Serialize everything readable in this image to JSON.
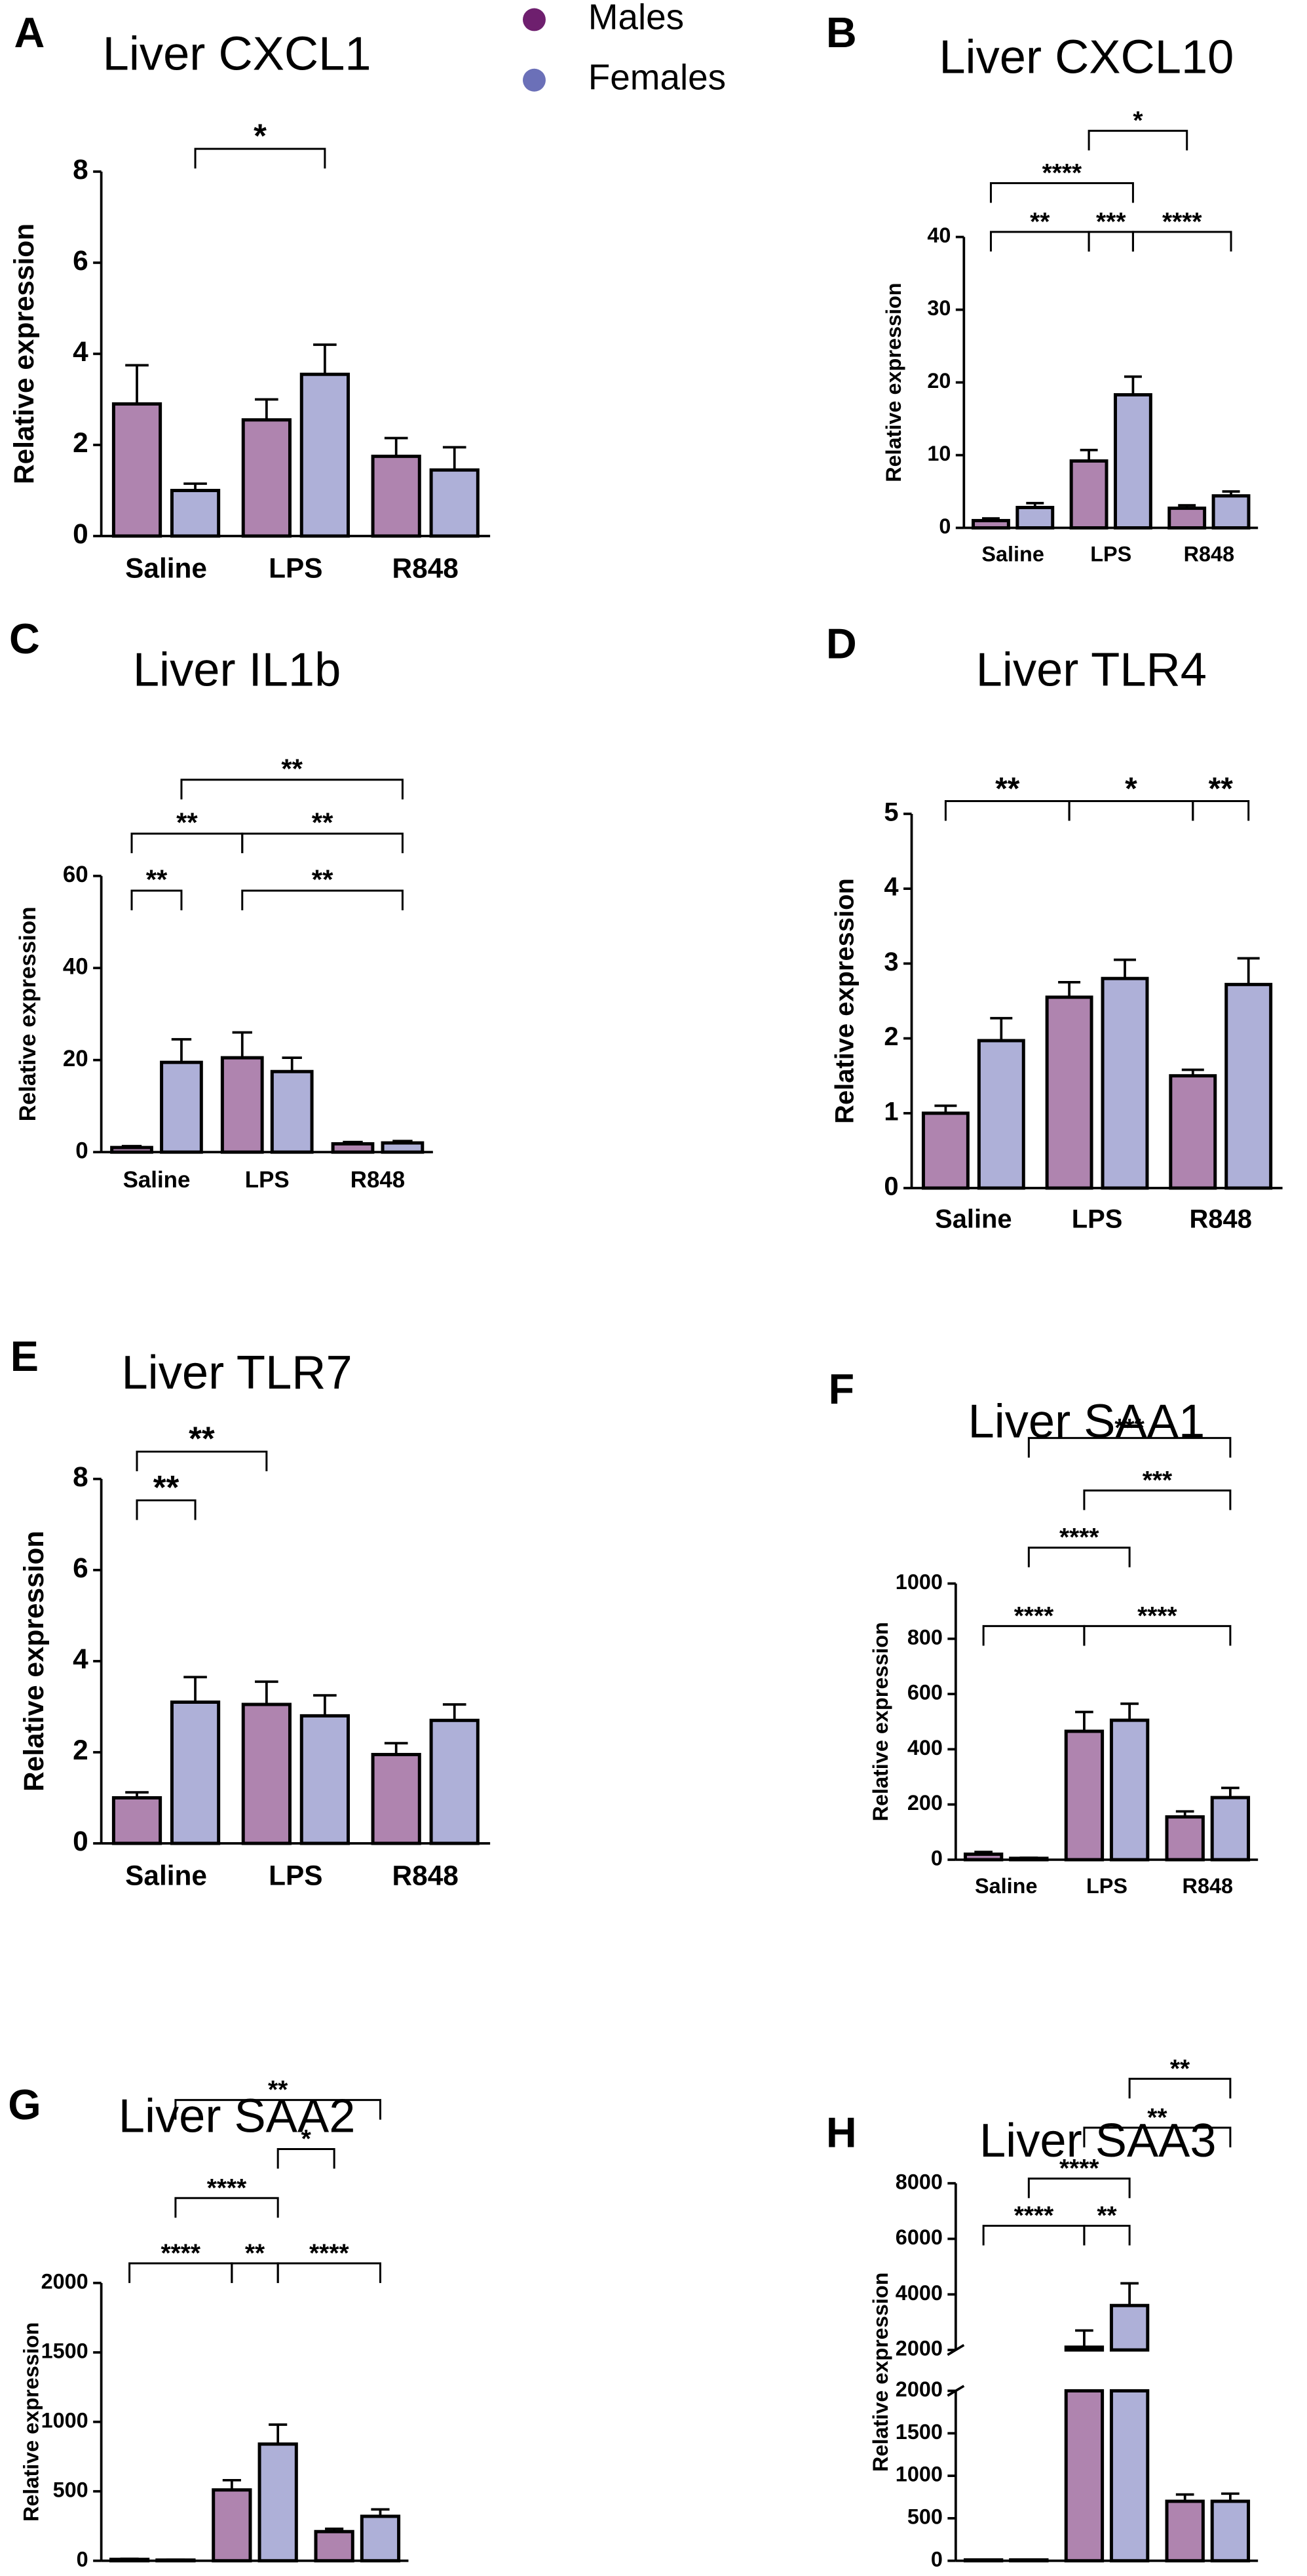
{
  "chart_data": [
    {
      "type": "bar",
      "panel": "A",
      "title": "Liver CXCL1",
      "y_label": "Relative expression",
      "categories": [
        "Saline",
        "LPS",
        "R848"
      ],
      "series": [
        {
          "name": "Males",
          "color": "#6e1f6e",
          "values": [
            2.9,
            2.55,
            1.75
          ],
          "errors": [
            0.85,
            0.45,
            0.4
          ]
        },
        {
          "name": "Females",
          "color": "#6b70b8",
          "values": [
            1.0,
            3.55,
            1.45
          ],
          "errors": [
            0.15,
            0.65,
            0.5
          ]
        }
      ],
      "ylim": [
        0,
        8
      ],
      "yticks": [
        0,
        2,
        4,
        6,
        8
      ],
      "annotations": [
        {
          "label": "*",
          "from": [
            "Saline",
            "Females"
          ],
          "to": [
            "LPS",
            "Females"
          ],
          "y": 8.5
        }
      ]
    },
    {
      "type": "bar",
      "panel": "B",
      "title": "Liver CXCL10",
      "y_label": "Relative expression",
      "categories": [
        "Saline",
        "LPS",
        "R848"
      ],
      "series": [
        {
          "name": "Males",
          "color": "#6e1f6e",
          "values": [
            1.0,
            9.2,
            2.7
          ],
          "errors": [
            0.3,
            1.5,
            0.4
          ]
        },
        {
          "name": "Females",
          "color": "#6b70b8",
          "values": [
            2.8,
            18.3,
            4.4
          ],
          "errors": [
            0.6,
            2.5,
            0.6
          ]
        }
      ],
      "ylim": [
        0,
        40
      ],
      "yticks": [
        0,
        10,
        20,
        30,
        40
      ],
      "annotations": [
        {
          "label": "**",
          "from": [
            "Saline",
            "Males"
          ],
          "to": [
            "LPS",
            "Males"
          ],
          "y": 40.7
        },
        {
          "label": "***",
          "from": [
            "LPS",
            "Males"
          ],
          "to": [
            "LPS",
            "Females"
          ],
          "y": 40.7
        },
        {
          "label": "****",
          "from": [
            "LPS",
            "Females"
          ],
          "to": [
            "R848",
            "Females"
          ],
          "y": 40.7
        },
        {
          "label": "****",
          "from": [
            "Saline",
            "Males"
          ],
          "to": [
            "LPS",
            "Females"
          ],
          "y": 47.4
        },
        {
          "label": "*",
          "from": [
            "LPS",
            "Males"
          ],
          "to": [
            "R848",
            "Males"
          ],
          "y": 54.6
        }
      ]
    },
    {
      "type": "bar",
      "panel": "C",
      "title": "Liver IL1b",
      "y_label": "Relative expression",
      "categories": [
        "Saline",
        "LPS",
        "R848"
      ],
      "series": [
        {
          "name": "Males",
          "color": "#6e1f6e",
          "values": [
            1.0,
            20.5,
            1.8
          ],
          "errors": [
            0.3,
            5.5,
            0.4
          ]
        },
        {
          "name": "Females",
          "color": "#6b70b8",
          "values": [
            19.5,
            17.5,
            2.0
          ],
          "errors": [
            5,
            3,
            0.4
          ]
        }
      ],
      "ylim": [
        0,
        60
      ],
      "yticks": [
        0,
        20,
        40,
        60
      ],
      "annotations": [
        {
          "label": "**",
          "from": [
            "Saline",
            "Males"
          ],
          "to": [
            "Saline",
            "Females"
          ],
          "y": 56.8
        },
        {
          "label": "**",
          "from": [
            "LPS",
            "Males"
          ],
          "to": [
            "R848",
            "Females"
          ],
          "y": 56.8
        },
        {
          "label": "**",
          "from": [
            "Saline",
            "Males"
          ],
          "to": [
            "LPS",
            "Males"
          ],
          "y": 69.2
        },
        {
          "label": "**",
          "from": [
            "LPS",
            "Males"
          ],
          "to": [
            "R848",
            "Females"
          ],
          "y": 69.2
        },
        {
          "label": "**",
          "from": [
            "Saline",
            "Females"
          ],
          "to": [
            "R848",
            "Females"
          ],
          "y": 80.9
        }
      ]
    },
    {
      "type": "bar",
      "panel": "D",
      "title": "Liver TLR4",
      "y_label": "Relative expression",
      "categories": [
        "Saline",
        "LPS",
        "R848"
      ],
      "series": [
        {
          "name": "Males",
          "color": "#6e1f6e",
          "values": [
            1.0,
            2.55,
            1.5
          ],
          "errors": [
            0.1,
            0.2,
            0.08
          ]
        },
        {
          "name": "Females",
          "color": "#6b70b8",
          "values": [
            1.97,
            2.8,
            2.72
          ],
          "errors": [
            0.3,
            0.25,
            0.35
          ]
        }
      ],
      "ylim": [
        0,
        5
      ],
      "yticks": [
        0,
        1,
        2,
        3,
        4,
        5
      ],
      "annotations": [
        {
          "label": "**",
          "from": [
            "Saline",
            "Males"
          ],
          "to": [
            "LPS",
            "Males"
          ],
          "y": 5.17
        },
        {
          "label": "*",
          "from": [
            "LPS",
            "Males"
          ],
          "to": [
            "R848",
            "Males"
          ],
          "y": 5.17
        },
        {
          "label": "**",
          "from": [
            "R848",
            "Males"
          ],
          "to": [
            "R848",
            "Females"
          ],
          "y": 5.17
        }
      ]
    },
    {
      "type": "bar",
      "panel": "E",
      "title": "Liver TLR7",
      "y_label": "Relative expression",
      "categories": [
        "Saline",
        "LPS",
        "R848"
      ],
      "series": [
        {
          "name": "Males",
          "color": "#6e1f6e",
          "values": [
            1.0,
            3.05,
            1.95
          ],
          "errors": [
            0.12,
            0.5,
            0.25
          ]
        },
        {
          "name": "Females",
          "color": "#6b70b8",
          "values": [
            3.1,
            2.8,
            2.7
          ],
          "errors": [
            0.55,
            0.45,
            0.35
          ]
        }
      ],
      "ylim": [
        0,
        8
      ],
      "yticks": [
        0,
        2,
        4,
        6,
        8
      ],
      "annotations": [
        {
          "label": "**",
          "from": [
            "Saline",
            "Males"
          ],
          "to": [
            "Saline",
            "Females"
          ],
          "y": 7.53
        },
        {
          "label": "**",
          "from": [
            "Saline",
            "Males"
          ],
          "to": [
            "LPS",
            "Males"
          ],
          "y": 8.6
        }
      ]
    },
    {
      "type": "bar",
      "panel": "F",
      "title": "Liver SAA1",
      "y_label": "Relative expression",
      "categories": [
        "Saline",
        "LPS",
        "R848"
      ],
      "series": [
        {
          "name": "Males",
          "color": "#6e1f6e",
          "values": [
            20,
            465,
            155
          ],
          "errors": [
            8,
            70,
            20
          ]
        },
        {
          "name": "Females",
          "color": "#6b70b8",
          "values": [
            5,
            505,
            225
          ],
          "errors": [
            2,
            60,
            35
          ]
        }
      ],
      "ylim": [
        0,
        1000
      ],
      "yticks": [
        0,
        200,
        400,
        600,
        800,
        1000
      ],
      "annotations": [
        {
          "label": "****",
          "from": [
            "Saline",
            "Males"
          ],
          "to": [
            "LPS",
            "Males"
          ],
          "y": 846
        },
        {
          "label": "****",
          "from": [
            "LPS",
            "Males"
          ],
          "to": [
            "R848",
            "Females"
          ],
          "y": 846
        },
        {
          "label": "****",
          "from": [
            "Saline",
            "Females"
          ],
          "to": [
            "LPS",
            "Females"
          ],
          "y": 1130
        },
        {
          "label": "***",
          "from": [
            "LPS",
            "Males"
          ],
          "to": [
            "R848",
            "Females"
          ],
          "y": 1337
        },
        {
          "label": "***",
          "from": [
            "Saline",
            "Females"
          ],
          "to": [
            "R848",
            "Females"
          ],
          "y": 1527
        }
      ]
    },
    {
      "type": "bar",
      "panel": "G",
      "title": "Liver SAA2",
      "y_label": "Relative expression",
      "categories": [
        "Saline",
        "LPS",
        "R848"
      ],
      "series": [
        {
          "name": "Males",
          "color": "#6e1f6e",
          "values": [
            10,
            510,
            210
          ],
          "errors": [
            4,
            70,
            20
          ]
        },
        {
          "name": "Females",
          "color": "#6b70b8",
          "values": [
            5,
            840,
            320
          ],
          "errors": [
            2,
            140,
            50
          ]
        }
      ],
      "ylim": [
        0,
        2000
      ],
      "yticks": [
        0,
        500,
        1000,
        1500,
        2000
      ],
      "annotations": [
        {
          "label": "****",
          "from": [
            "Saline",
            "Males"
          ],
          "to": [
            "LPS",
            "Males"
          ],
          "y": 2141
        },
        {
          "label": "**",
          "from": [
            "LPS",
            "Males"
          ],
          "to": [
            "LPS",
            "Females"
          ],
          "y": 2141
        },
        {
          "label": "****",
          "from": [
            "LPS",
            "Females"
          ],
          "to": [
            "R848",
            "Females"
          ],
          "y": 2141
        },
        {
          "label": "****",
          "from": [
            "Saline",
            "Females"
          ],
          "to": [
            "LPS",
            "Females"
          ],
          "y": 2611
        },
        {
          "label": "*",
          "from": [
            "LPS",
            "Females"
          ],
          "to": [
            "R848",
            "Males"
          ],
          "y": 2964
        },
        {
          "label": "**",
          "from": [
            "Saline",
            "Females"
          ],
          "to": [
            "R848",
            "Females"
          ],
          "y": 3317
        }
      ]
    },
    {
      "type": "bar",
      "panel": "H",
      "title": "Liver SAA3",
      "y_label": "Relative expression",
      "categories": [
        "Saline",
        "LPS",
        "R848"
      ],
      "series": [
        {
          "name": "Males",
          "color": "#6e1f6e",
          "values": [
            10,
            2100,
            700
          ],
          "errors": [
            3,
            600,
            80
          ]
        },
        {
          "name": "Females",
          "color": "#6b70b8",
          "values": [
            10,
            3600,
            700
          ],
          "errors": [
            3,
            800,
            90
          ]
        }
      ],
      "segments": [
        {
          "ylim": [
            0,
            2000
          ],
          "yticks": [
            0,
            500,
            1000,
            1500,
            2000
          ]
        },
        {
          "ylim": [
            2000,
            8000
          ],
          "yticks": [
            2000,
            4000,
            6000,
            8000
          ]
        }
      ],
      "annotations": [
        {
          "label": "****",
          "from": [
            "Saline",
            "Males"
          ],
          "to": [
            "LPS",
            "Males"
          ],
          "y": 6470
        },
        {
          "label": "**",
          "from": [
            "LPS",
            "Males"
          ],
          "to": [
            "LPS",
            "Females"
          ],
          "y": 6470
        },
        {
          "label": "****",
          "from": [
            "Saline",
            "Females"
          ],
          "to": [
            "LPS",
            "Females"
          ],
          "y": 8170
        },
        {
          "label": "**",
          "from": [
            "LPS",
            "Males"
          ],
          "to": [
            "R848",
            "Females"
          ],
          "y": 10000
        },
        {
          "label": "**",
          "from": [
            "LPS",
            "Females"
          ],
          "to": [
            "R848",
            "Females"
          ],
          "y": 11760
        }
      ]
    }
  ]
}
